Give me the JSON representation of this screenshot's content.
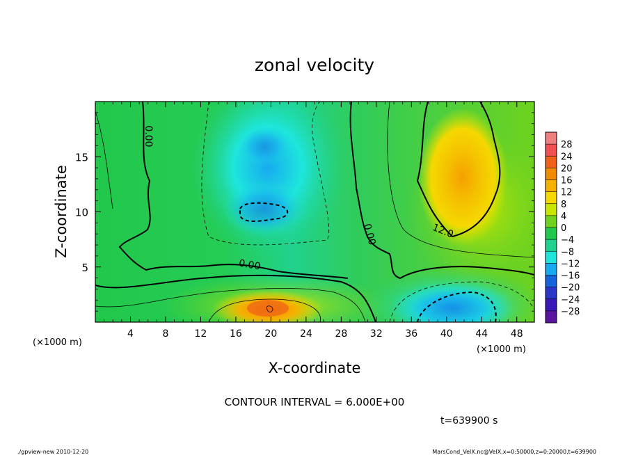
{
  "chart_data": {
    "type": "heatmap",
    "title": "zonal velocity",
    "xlabel": "X-coordinate",
    "ylabel": "Z-coordinate",
    "x_unit": "(×1000 m)",
    "y_unit": "(×1000 m)",
    "xlim": [
      0,
      50
    ],
    "ylim": [
      0,
      20
    ],
    "x_ticks": [
      "4",
      "8",
      "12",
      "16",
      "20",
      "24",
      "28",
      "32",
      "36",
      "40",
      "44",
      "48"
    ],
    "y_ticks": [
      "5",
      "10",
      "15"
    ],
    "colorbar": {
      "labels": [
        "28",
        "24",
        "20",
        "16",
        "12",
        "8",
        "4",
        "0",
        "−4",
        "−8",
        "−12",
        "−16",
        "−20",
        "−24",
        "−28"
      ],
      "colors": [
        "#f08080",
        "#f05050",
        "#f06018",
        "#f08a00",
        "#f5b000",
        "#f5d800",
        "#c8e600",
        "#6ed21e",
        "#22c84b",
        "#20d28c",
        "#1ee6dc",
        "#17aaf0",
        "#1464dc",
        "#2a36c8",
        "#3a18b8",
        "#5a14a0"
      ],
      "min": -30,
      "max": 30,
      "step": 4
    },
    "contour_labels": [
      "0.00",
      "0.00",
      "0.00",
      "0.00",
      "12.0"
    ],
    "features": [
      {
        "x": 41.5,
        "z": 13,
        "value": 16
      },
      {
        "x": 19.5,
        "z": 1.5,
        "value": 17
      },
      {
        "x": 41,
        "z": 1.5,
        "value": -15
      },
      {
        "x": 18.5,
        "z": 10,
        "value": -13
      },
      {
        "x": 19,
        "z": 16.5,
        "value": -11
      }
    ],
    "contour_interval_text": "CONTOUR INTERVAL = 6.000E+00",
    "time_text": "t=639900 s"
  },
  "footer": {
    "left": "./gpview-new  2010-12-20",
    "right": "MarsCond_VelX.nc@VelX,x=0:50000,z=0:20000,t=639900"
  }
}
